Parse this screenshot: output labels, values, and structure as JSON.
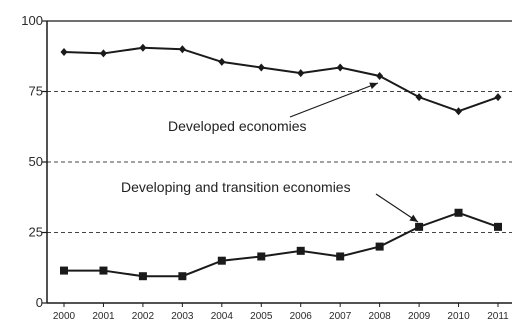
{
  "chart_data": {
    "type": "line",
    "categories": [
      "2000",
      "2001",
      "2002",
      "2003",
      "2004",
      "2005",
      "2006",
      "2007",
      "2008",
      "2009",
      "2010",
      "2011"
    ],
    "series": [
      {
        "name": "Developed economies",
        "marker": "diamond",
        "values": [
          89,
          88.5,
          90.5,
          90,
          85.5,
          83.5,
          81.5,
          83.5,
          80.5,
          73,
          68,
          73
        ]
      },
      {
        "name": "Developing and transition economies",
        "marker": "square",
        "values": [
          11.5,
          11.5,
          9.5,
          9.5,
          15,
          16.5,
          18.5,
          16.5,
          20,
          27,
          32,
          27
        ]
      }
    ],
    "ylim": [
      0,
      100
    ],
    "yticks": [
      0,
      25,
      50,
      75,
      100
    ],
    "ytick_labels": [
      "0",
      "25",
      "50",
      "75",
      "100"
    ],
    "grid": "dashed horizontal at 25, 50, 75",
    "title": "",
    "xlabel": "",
    "ylabel": "",
    "annotations": [
      {
        "text": "Developed economies",
        "points_to": {
          "x": "2008",
          "y": 80.5
        }
      },
      {
        "text": "Developing and transition economies",
        "points_to": {
          "x": "2009",
          "y": 27
        }
      }
    ],
    "colors": {
      "line": "#1a1a1a",
      "grid": "#444444",
      "axis": "#1a1a1a"
    }
  }
}
